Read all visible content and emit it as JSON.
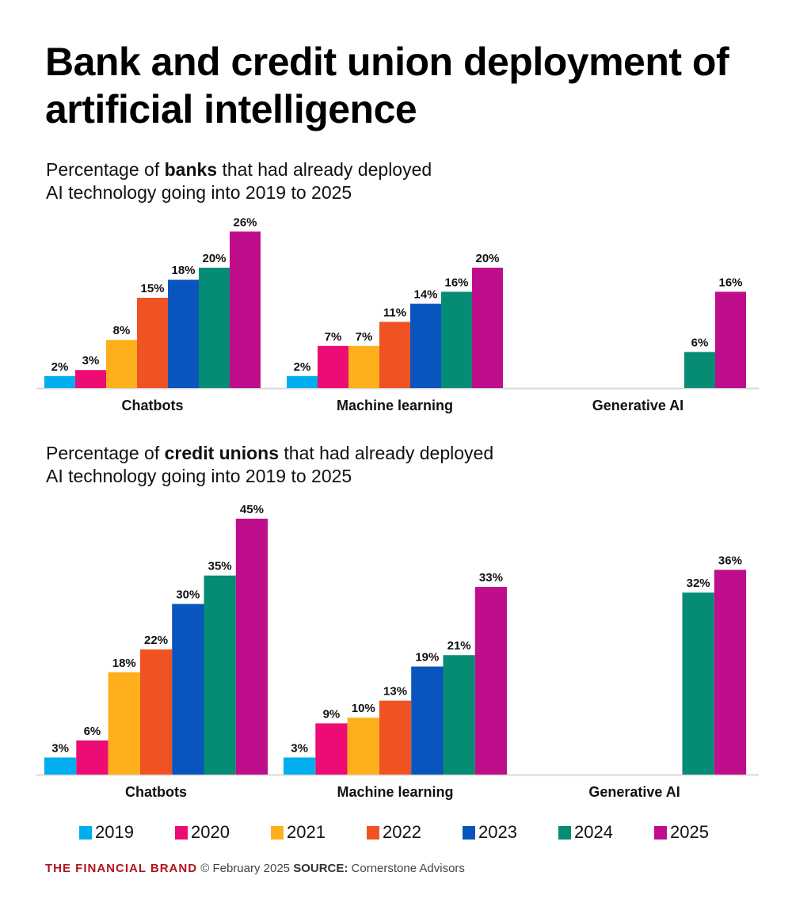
{
  "title": "Bank and credit union deployment of artificial intelligence",
  "colors": {
    "2019": "#00AEEF",
    "2020": "#EC0C73",
    "2021": "#FDB01B",
    "2022": "#F05323",
    "2023": "#0955BD",
    "2024": "#068C74",
    "2025": "#BF0E8C"
  },
  "legend": [
    "2019",
    "2020",
    "2021",
    "2022",
    "2023",
    "2024",
    "2025"
  ],
  "chart_data": [
    {
      "type": "bar",
      "subtitle": {
        "pre": "Percentage of ",
        "bold": "banks",
        "post": " that had already deployed",
        "line2": "AI technology going into 2019 to 2025"
      },
      "categories": [
        "Chatbots",
        "Machine learning",
        "Generative AI"
      ],
      "series": [
        {
          "name": "2019",
          "values": [
            2,
            2,
            null
          ]
        },
        {
          "name": "2020",
          "values": [
            3,
            7,
            null
          ]
        },
        {
          "name": "2021",
          "values": [
            8,
            7,
            null
          ]
        },
        {
          "name": "2022",
          "values": [
            15,
            11,
            null
          ]
        },
        {
          "name": "2023",
          "values": [
            18,
            14,
            null
          ]
        },
        {
          "name": "2024",
          "values": [
            20,
            16,
            6
          ]
        },
        {
          "name": "2025",
          "values": [
            26,
            20,
            16
          ]
        }
      ],
      "value_suffix": "%"
    },
    {
      "type": "bar",
      "subtitle": {
        "pre": "Percentage of ",
        "bold": "credit unions",
        "post": " that had already deployed",
        "line2": "AI technology going into 2019 to 2025"
      },
      "categories": [
        "Chatbots",
        "Machine learning",
        "Generative AI"
      ],
      "series": [
        {
          "name": "2019",
          "values": [
            3,
            3,
            null
          ]
        },
        {
          "name": "2020",
          "values": [
            6,
            9,
            null
          ]
        },
        {
          "name": "2021",
          "values": [
            18,
            10,
            null
          ]
        },
        {
          "name": "2022",
          "values": [
            22,
            13,
            null
          ]
        },
        {
          "name": "2023",
          "values": [
            30,
            19,
            null
          ]
        },
        {
          "name": "2024",
          "values": [
            35,
            21,
            32
          ]
        },
        {
          "name": "2025",
          "values": [
            45,
            33,
            36
          ]
        }
      ],
      "value_suffix": "%"
    }
  ],
  "footer": {
    "brand": "THE FINANCIAL BRAND",
    "date": "© February 2025",
    "source_label": "SOURCE:",
    "source": "Cornerstone Advisors"
  }
}
